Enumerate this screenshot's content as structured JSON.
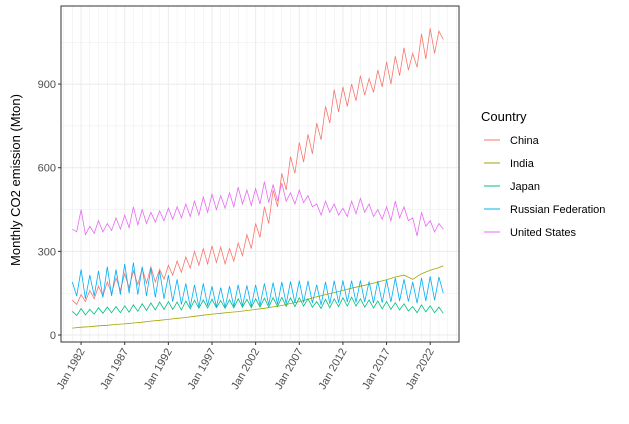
{
  "chart_data": {
    "type": "line",
    "title": "",
    "xlabel": "",
    "ylabel": "Monthly CO2 emission (Mton)",
    "xlim": [
      1979.7,
      2025.3
    ],
    "ylim": [
      -25,
      1180
    ],
    "x_ticks": [
      {
        "value": 1982,
        "label": "Jan 1982"
      },
      {
        "value": 1987,
        "label": "Jan 1987"
      },
      {
        "value": 1992,
        "label": "Jan 1992"
      },
      {
        "value": 1997,
        "label": "Jan 1997"
      },
      {
        "value": 2002,
        "label": "Jan 2002"
      },
      {
        "value": 2007,
        "label": "Jan 2007"
      },
      {
        "value": 2012,
        "label": "Jan 2012"
      },
      {
        "value": 2017,
        "label": "Jan 2017"
      },
      {
        "value": 2022,
        "label": "Jan 2022"
      }
    ],
    "y_ticks": [
      {
        "value": 0,
        "label": "0"
      },
      {
        "value": 300,
        "label": "300"
      },
      {
        "value": 600,
        "label": "600"
      },
      {
        "value": 900,
        "label": "900"
      }
    ],
    "grid": true,
    "legend": {
      "title": "Country",
      "position": "right"
    },
    "series": [
      {
        "name": "China",
        "color": "#F8766D",
        "x": [
          1981,
          1981.5,
          1982,
          1982.5,
          1983,
          1983.5,
          1984,
          1984.5,
          1985,
          1985.5,
          1986,
          1986.5,
          1987,
          1987.5,
          1988,
          1988.5,
          1989,
          1989.5,
          1990,
          1990.5,
          1991,
          1991.5,
          1992,
          1992.5,
          1993,
          1993.5,
          1994,
          1994.5,
          1995,
          1995.5,
          1996,
          1996.5,
          1997,
          1997.5,
          1998,
          1998.5,
          1999,
          1999.5,
          2000,
          2000.5,
          2001,
          2001.5,
          2002,
          2002.5,
          2003,
          2003.5,
          2004,
          2004.5,
          2005,
          2005.5,
          2006,
          2006.5,
          2007,
          2007.5,
          2008,
          2008.5,
          2009,
          2009.5,
          2010,
          2010.5,
          2011,
          2011.5,
          2012,
          2012.5,
          2013,
          2013.5,
          2014,
          2014.5,
          2015,
          2015.5,
          2016,
          2016.5,
          2017,
          2017.5,
          2018,
          2018.5,
          2019,
          2019.5,
          2020,
          2020.5,
          2021,
          2021.5,
          2022,
          2022.5,
          2023,
          2023.5
        ],
        "y": [
          125,
          110,
          145,
          120,
          160,
          130,
          175,
          140,
          190,
          150,
          205,
          160,
          220,
          170,
          230,
          180,
          240,
          185,
          245,
          190,
          235,
          200,
          250,
          215,
          265,
          225,
          280,
          240,
          300,
          250,
          310,
          255,
          320,
          260,
          315,
          255,
          310,
          265,
          330,
          285,
          360,
          310,
          400,
          350,
          460,
          400,
          520,
          460,
          580,
          520,
          640,
          580,
          690,
          620,
          720,
          650,
          760,
          700,
          820,
          760,
          880,
          800,
          890,
          820,
          900,
          840,
          930,
          860,
          920,
          870,
          950,
          890,
          980,
          900,
          1000,
          930,
          1030,
          950,
          1010,
          960,
          1080,
          990,
          1100,
          1010,
          1090,
          1060
        ]
      },
      {
        "name": "India",
        "color": "#A3A500",
        "x": [
          1981,
          1982,
          1983,
          1984,
          1985,
          1986,
          1987,
          1988,
          1989,
          1990,
          1991,
          1992,
          1993,
          1994,
          1995,
          1996,
          1997,
          1998,
          1999,
          2000,
          2001,
          2002,
          2003,
          2004,
          2005,
          2006,
          2007,
          2008,
          2009,
          2010,
          2011,
          2012,
          2013,
          2014,
          2015,
          2016,
          2017,
          2018,
          2019,
          2020,
          2021,
          2022,
          2023,
          2023.5
        ],
        "y": [
          25,
          28,
          30,
          33,
          35,
          38,
          40,
          43,
          46,
          50,
          53,
          56,
          60,
          63,
          67,
          71,
          75,
          78,
          81,
          84,
          88,
          92,
          96,
          101,
          106,
          113,
          120,
          128,
          137,
          145,
          152,
          160,
          168,
          175,
          182,
          190,
          198,
          208,
          215,
          200,
          220,
          232,
          242,
          248
        ]
      },
      {
        "name": "Japan",
        "color": "#00BF7D",
        "x": [
          1981,
          1981.5,
          1982,
          1982.5,
          1983,
          1983.5,
          1984,
          1984.5,
          1985,
          1985.5,
          1986,
          1986.5,
          1987,
          1987.5,
          1988,
          1988.5,
          1989,
          1989.5,
          1990,
          1990.5,
          1991,
          1991.5,
          1992,
          1992.5,
          1993,
          1993.5,
          1994,
          1994.5,
          1995,
          1995.5,
          1996,
          1996.5,
          1997,
          1997.5,
          1998,
          1998.5,
          1999,
          1999.5,
          2000,
          2000.5,
          2001,
          2001.5,
          2002,
          2002.5,
          2003,
          2003.5,
          2004,
          2004.5,
          2005,
          2005.5,
          2006,
          2006.5,
          2007,
          2007.5,
          2008,
          2008.5,
          2009,
          2009.5,
          2010,
          2010.5,
          2011,
          2011.5,
          2012,
          2012.5,
          2013,
          2013.5,
          2014,
          2014.5,
          2015,
          2015.5,
          2016,
          2016.5,
          2017,
          2017.5,
          2018,
          2018.5,
          2019,
          2019.5,
          2020,
          2020.5,
          2021,
          2021.5,
          2022,
          2022.5,
          2023,
          2023.5
        ],
        "y": [
          85,
          70,
          95,
          72,
          92,
          75,
          98,
          78,
          100,
          80,
          102,
          80,
          105,
          82,
          108,
          85,
          112,
          88,
          115,
          90,
          118,
          92,
          120,
          92,
          118,
          90,
          122,
          94,
          125,
          96,
          126,
          97,
          128,
          98,
          124,
          96,
          126,
          98,
          130,
          100,
          128,
          98,
          130,
          100,
          132,
          100,
          134,
          102,
          135,
          103,
          133,
          102,
          134,
          104,
          130,
          100,
          120,
          95,
          128,
          98,
          130,
          102,
          134,
          104,
          136,
          104,
          130,
          100,
          126,
          97,
          122,
          94,
          120,
          92,
          116,
          90,
          112,
          86,
          102,
          80,
          108,
          83,
          105,
          80,
          100,
          78
        ]
      },
      {
        "name": "Russian Federation",
        "color": "#00B0F6",
        "x": [
          1981,
          1981.5,
          1982,
          1982.5,
          1983,
          1983.5,
          1984,
          1984.5,
          1985,
          1985.5,
          1986,
          1986.5,
          1987,
          1987.5,
          1988,
          1988.5,
          1989,
          1989.5,
          1990,
          1990.5,
          1991,
          1991.5,
          1992,
          1992.5,
          1993,
          1993.5,
          1994,
          1994.5,
          1995,
          1995.5,
          1996,
          1996.5,
          1997,
          1997.5,
          1998,
          1998.5,
          1999,
          1999.5,
          2000,
          2000.5,
          2001,
          2001.5,
          2002,
          2002.5,
          2003,
          2003.5,
          2004,
          2004.5,
          2005,
          2005.5,
          2006,
          2006.5,
          2007,
          2007.5,
          2008,
          2008.5,
          2009,
          2009.5,
          2010,
          2010.5,
          2011,
          2011.5,
          2012,
          2012.5,
          2013,
          2013.5,
          2014,
          2014.5,
          2015,
          2015.5,
          2016,
          2016.5,
          2017,
          2017.5,
          2018,
          2018.5,
          2019,
          2019.5,
          2020,
          2020.5,
          2021,
          2021.5,
          2022,
          2022.5,
          2023,
          2023.5
        ],
        "y": [
          190,
          140,
          235,
          130,
          215,
          140,
          230,
          135,
          245,
          140,
          235,
          145,
          255,
          150,
          260,
          145,
          245,
          140,
          240,
          135,
          230,
          130,
          215,
          120,
          200,
          110,
          185,
          100,
          180,
          100,
          185,
          105,
          175,
          100,
          170,
          98,
          175,
          102,
          180,
          105,
          178,
          103,
          180,
          106,
          185,
          108,
          188,
          110,
          190,
          112,
          192,
          115,
          195,
          116,
          194,
          115,
          180,
          108,
          190,
          112,
          195,
          116,
          196,
          118,
          195,
          117,
          196,
          118,
          192,
          115,
          194,
          116,
          198,
          118,
          205,
          122,
          200,
          120,
          190,
          114,
          205,
          122,
          210,
          125,
          208,
          150
        ]
      },
      {
        "name": "United States",
        "color": "#E76BF3",
        "x": [
          1981,
          1981.5,
          1982,
          1982.5,
          1983,
          1983.5,
          1984,
          1984.5,
          1985,
          1985.5,
          1986,
          1986.5,
          1987,
          1987.5,
          1988,
          1988.5,
          1989,
          1989.5,
          1990,
          1990.5,
          1991,
          1991.5,
          1992,
          1992.5,
          1993,
          1993.5,
          1994,
          1994.5,
          1995,
          1995.5,
          1996,
          1996.5,
          1997,
          1997.5,
          1998,
          1998.5,
          1999,
          1999.5,
          2000,
          2000.5,
          2001,
          2001.5,
          2002,
          2002.5,
          2003,
          2003.5,
          2004,
          2004.5,
          2005,
          2005.5,
          2006,
          2006.5,
          2007,
          2007.5,
          2008,
          2008.5,
          2009,
          2009.5,
          2010,
          2010.5,
          2011,
          2011.5,
          2012,
          2012.5,
          2013,
          2013.5,
          2014,
          2014.5,
          2015,
          2015.5,
          2016,
          2016.5,
          2017,
          2017.5,
          2018,
          2018.5,
          2019,
          2019.5,
          2020,
          2020.5,
          2021,
          2021.5,
          2022,
          2022.5,
          2023,
          2023.5
        ],
        "y": [
          380,
          370,
          450,
          360,
          390,
          365,
          410,
          370,
          400,
          375,
          420,
          380,
          430,
          385,
          460,
          395,
          450,
          400,
          440,
          405,
          445,
          410,
          455,
          415,
          460,
          420,
          470,
          425,
          480,
          430,
          495,
          440,
          505,
          450,
          500,
          455,
          510,
          460,
          530,
          470,
          520,
          465,
          525,
          470,
          550,
          475,
          540,
          480,
          545,
          480,
          510,
          470,
          520,
          475,
          500,
          460,
          470,
          430,
          480,
          440,
          470,
          430,
          455,
          425,
          480,
          435,
          490,
          440,
          470,
          425,
          450,
          415,
          460,
          410,
          480,
          420,
          460,
          410,
          420,
          355,
          440,
          390,
          410,
          370,
          400,
          380
        ]
      }
    ]
  }
}
